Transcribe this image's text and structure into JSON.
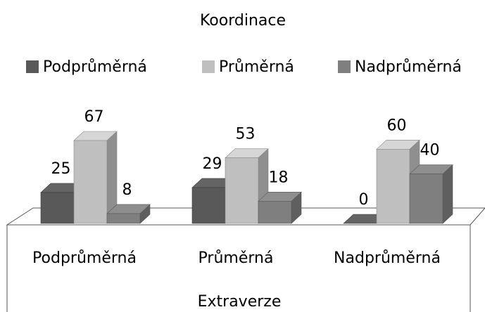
{
  "chart_data": {
    "type": "bar3d",
    "title": "Koordinace",
    "x_label": "Extraverze",
    "categories": [
      "Podprůměrná",
      "Průměrná",
      "Nadprůměrná"
    ],
    "series": [
      {
        "name": "Podprůměrná",
        "color": "#595959",
        "values": [
          25,
          29,
          0
        ]
      },
      {
        "name": "Průměrná",
        "color": "#bfbfbf",
        "values": [
          67,
          53,
          60
        ]
      },
      {
        "name": "Nadprůměrná",
        "color": "#7f7f7f",
        "values": [
          8,
          18,
          40
        ]
      }
    ]
  }
}
